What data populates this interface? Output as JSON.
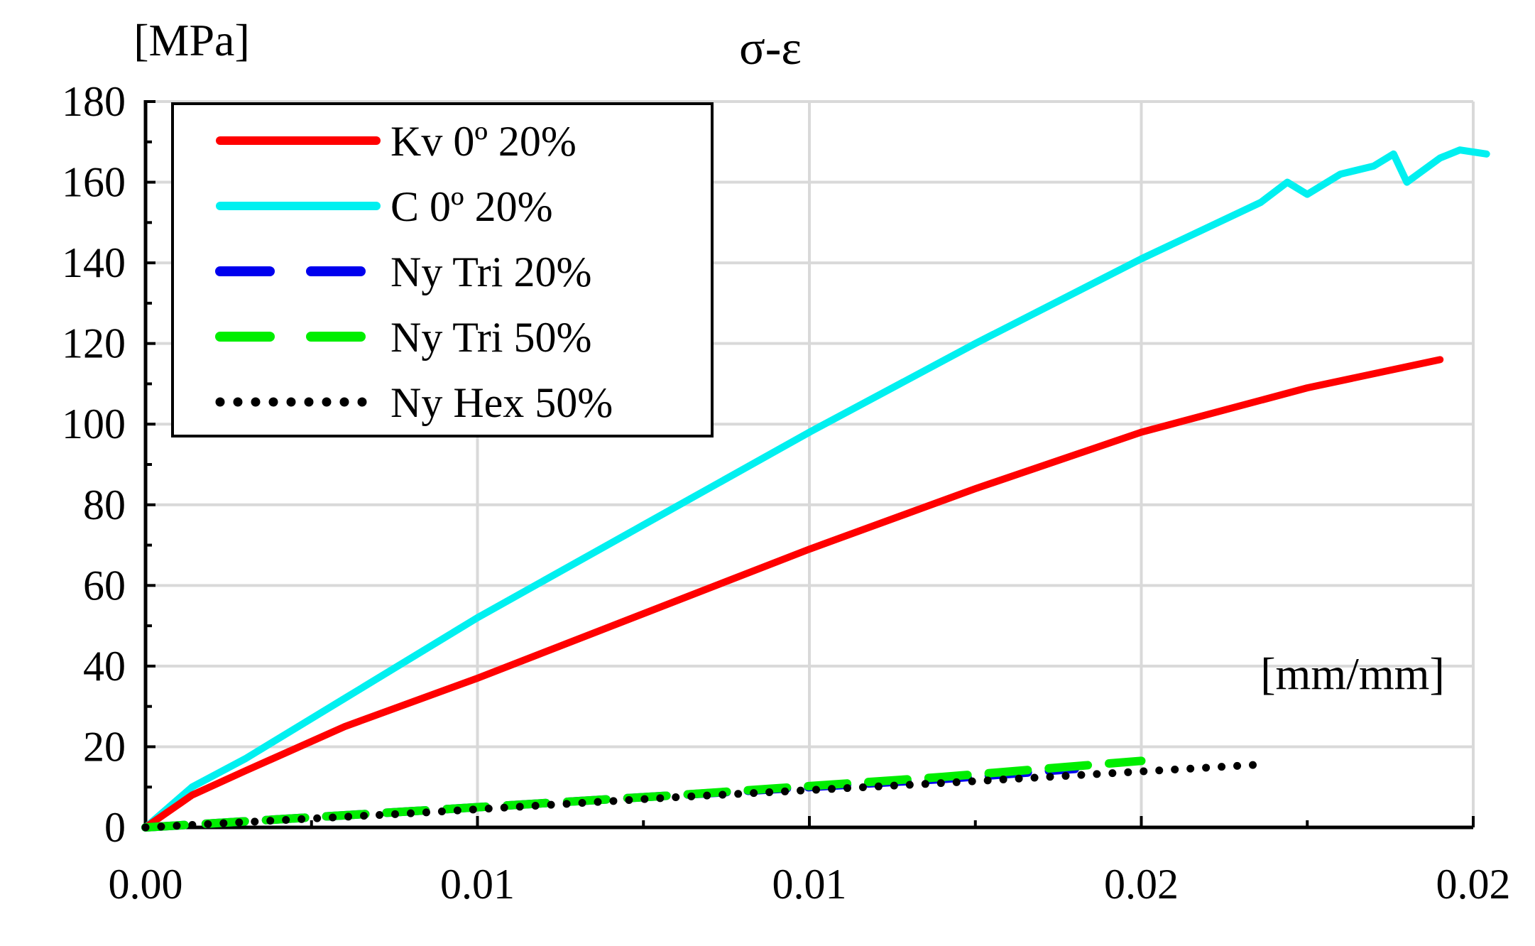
{
  "chart_data": {
    "type": "line",
    "title": "σ-ε",
    "ylabel": "[MPa]",
    "xlabel": "[mm/mm]",
    "xlim": [
      0,
      0.02
    ],
    "ylim": [
      0,
      180
    ],
    "grid": true,
    "legend_position": "top-left",
    "x_tick_labels": [
      "0.00",
      "0.01",
      "0.01",
      "0.02",
      "0.02"
    ],
    "y_tick_labels": [
      "0",
      "20",
      "40",
      "60",
      "80",
      "100",
      "120",
      "140",
      "160",
      "180"
    ],
    "y_ticks": [
      0,
      20,
      40,
      60,
      80,
      100,
      120,
      140,
      160,
      180
    ],
    "series": [
      {
        "name": "Kv 0º 20%",
        "color": "#ff0000",
        "style": "solid",
        "x": [
          0,
          0.0007,
          0.0015,
          0.003,
          0.005,
          0.0075,
          0.01,
          0.0125,
          0.015,
          0.0175,
          0.0195
        ],
        "y": [
          0,
          8,
          14,
          25,
          37,
          53,
          69,
          84,
          98,
          109,
          116
        ]
      },
      {
        "name": "C 0º 20%",
        "color": "#00f0f0",
        "style": "solid",
        "x": [
          0,
          0.0007,
          0.0015,
          0.003,
          0.005,
          0.0075,
          0.01,
          0.0125,
          0.015,
          0.0168,
          0.0172,
          0.0175,
          0.018,
          0.0185,
          0.0188,
          0.019,
          0.0195,
          0.0198,
          0.0202
        ],
        "y": [
          0,
          10,
          17,
          32,
          52,
          75,
          98,
          120,
          141,
          155,
          160,
          157,
          162,
          164,
          167,
          160,
          166,
          168,
          167
        ]
      },
      {
        "name": "Ny Tri 20%",
        "color": "#0000ee",
        "style": "dashed",
        "x": [
          0,
          0.004,
          0.008,
          0.012,
          0.014
        ],
        "y": [
          0,
          4,
          8,
          12,
          14.5
        ]
      },
      {
        "name": "Ny Tri 50%",
        "color": "#00ee00",
        "style": "dashed",
        "x": [
          0,
          0.004,
          0.008,
          0.012,
          0.015
        ],
        "y": [
          0,
          4,
          8,
          12.5,
          16.5
        ]
      },
      {
        "name": "Ny Hex 50%",
        "color": "#000000",
        "style": "dotted",
        "x": [
          0,
          0.004,
          0.008,
          0.012,
          0.0167
        ],
        "y": [
          0,
          3.5,
          7.5,
          11,
          15.5
        ]
      }
    ]
  }
}
